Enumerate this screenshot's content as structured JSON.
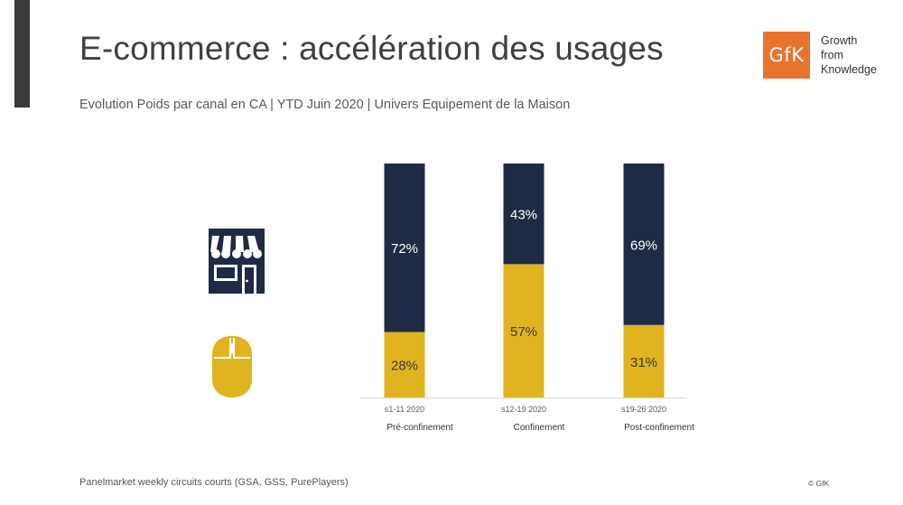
{
  "header": {
    "title": "E-commerce : accélération des usages",
    "subtitle": "Evolution Poids par canal en CA | YTD Juin 2020 | Univers Equipement de la Maison"
  },
  "logo": {
    "mark": "GfK",
    "tagline": [
      "Growth",
      "from",
      "Knowledge"
    ],
    "color": "#e8732d"
  },
  "icons": {
    "store": "storefront-icon",
    "online": "computer-mouse-icon"
  },
  "footer": {
    "source": "Panelmarket weekly circuits courts (GSA, GSS, PurePlayers)",
    "copyright": "© GfK"
  },
  "chart_data": {
    "type": "bar",
    "stacked": true,
    "percent": true,
    "ylim": [
      0,
      100
    ],
    "categories": [
      "s1-11 2020",
      "s12-19 2020",
      "s19-26 2020"
    ],
    "category_sublabels": [
      "Pré-confinement",
      "Confinement",
      "Post-confinement"
    ],
    "series": [
      {
        "values": [
          28,
          57,
          31
        ],
        "labels": [
          "28%",
          "57%",
          "31%"
        ],
        "color": "#e0b420"
      },
      {
        "values": [
          72,
          43,
          69
        ],
        "labels": [
          "72%",
          "43%",
          "69%"
        ],
        "color": "#1f2a44"
      }
    ],
    "title": "",
    "xlabel": "",
    "ylabel": "",
    "grid": false,
    "legend": "none"
  }
}
